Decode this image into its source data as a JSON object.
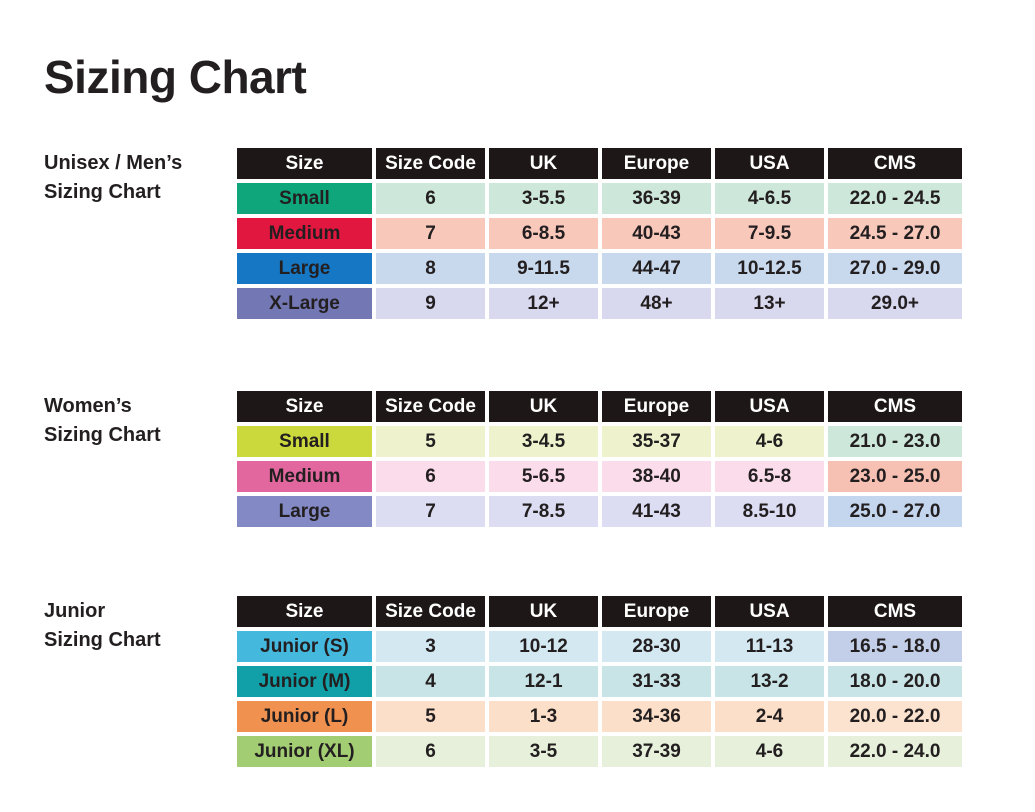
{
  "page": {
    "title": "Sizing Chart"
  },
  "colors": {
    "header_bg": "#1d1718",
    "header_text": "#ffffff",
    "body_text": "#231f20",
    "background": "#ffffff"
  },
  "columns": [
    "Size",
    "Size Code",
    "UK",
    "Europe",
    "USA",
    "CMS"
  ],
  "tables": [
    {
      "name": "unisex-mens",
      "label_lines": [
        "Unisex / Men’s",
        "Sizing Chart"
      ],
      "rows": [
        {
          "size": "Small",
          "label_color": "#10a67b",
          "row_color": "#cde8da",
          "cms_color": "#cde8da",
          "values": [
            "6",
            "3-5.5",
            "36-39",
            "4-6.5",
            "22.0 - 24.5"
          ]
        },
        {
          "size": "Medium",
          "label_color": "#e1173f",
          "row_color": "#f8c9bb",
          "cms_color": "#f8c9bb",
          "values": [
            "7",
            "6-8.5",
            "40-43",
            "7-9.5",
            "24.5 - 27.0"
          ]
        },
        {
          "size": "Large",
          "label_color": "#1678c4",
          "row_color": "#c8d9ee",
          "cms_color": "#c8d9ee",
          "values": [
            "8",
            "9-11.5",
            "44-47",
            "10-12.5",
            "27.0 - 29.0"
          ]
        },
        {
          "size": "X-Large",
          "label_color": "#7377b3",
          "row_color": "#d8d8ee",
          "cms_color": "#d8d8ee",
          "values": [
            "9",
            "12+",
            "48+",
            "13+",
            "29.0+"
          ]
        }
      ]
    },
    {
      "name": "womens",
      "label_lines": [
        "Women’s",
        "Sizing Chart"
      ],
      "rows": [
        {
          "size": "Small",
          "label_color": "#ccd93c",
          "row_color": "#eef3cd",
          "cms_color": "#cde8da",
          "values": [
            "5",
            "3-4.5",
            "35-37",
            "4-6",
            "21.0 - 23.0"
          ]
        },
        {
          "size": "Medium",
          "label_color": "#e2679e",
          "row_color": "#fadcea",
          "cms_color": "#f6c1b3",
          "values": [
            "6",
            "5-6.5",
            "38-40",
            "6.5-8",
            "23.0 - 25.0"
          ]
        },
        {
          "size": "Large",
          "label_color": "#8289c4",
          "row_color": "#dcdcf2",
          "cms_color": "#c4d6ee",
          "values": [
            "7",
            "7-8.5",
            "41-43",
            "8.5-10",
            "25.0 - 27.0"
          ]
        }
      ]
    },
    {
      "name": "junior",
      "label_lines": [
        "Junior",
        "Sizing Chart"
      ],
      "rows": [
        {
          "size": "Junior (S)",
          "label_color": "#45b8de",
          "row_color": "#d4e8f2",
          "cms_color": "#c3cfe8",
          "values": [
            "3",
            "10-12",
            "28-30",
            "11-13",
            "16.5 - 18.0"
          ]
        },
        {
          "size": "Junior (M)",
          "label_color": "#12a0a8",
          "row_color": "#c9e4e6",
          "cms_color": "#c9e4e6",
          "values": [
            "4",
            "12-1",
            "31-33",
            "13-2",
            "18.0 - 20.0"
          ]
        },
        {
          "size": "Junior (L)",
          "label_color": "#f0914f",
          "row_color": "#fcdfc9",
          "cms_color": "#fce3cf",
          "values": [
            "5",
            "1-3",
            "34-36",
            "2-4",
            "20.0 - 22.0"
          ]
        },
        {
          "size": "Junior (XL)",
          "label_color": "#a3cd72",
          "row_color": "#e6f0da",
          "cms_color": "#e6f0da",
          "values": [
            "6",
            "3-5",
            "37-39",
            "4-6",
            "22.0 - 24.0"
          ]
        }
      ]
    }
  ]
}
